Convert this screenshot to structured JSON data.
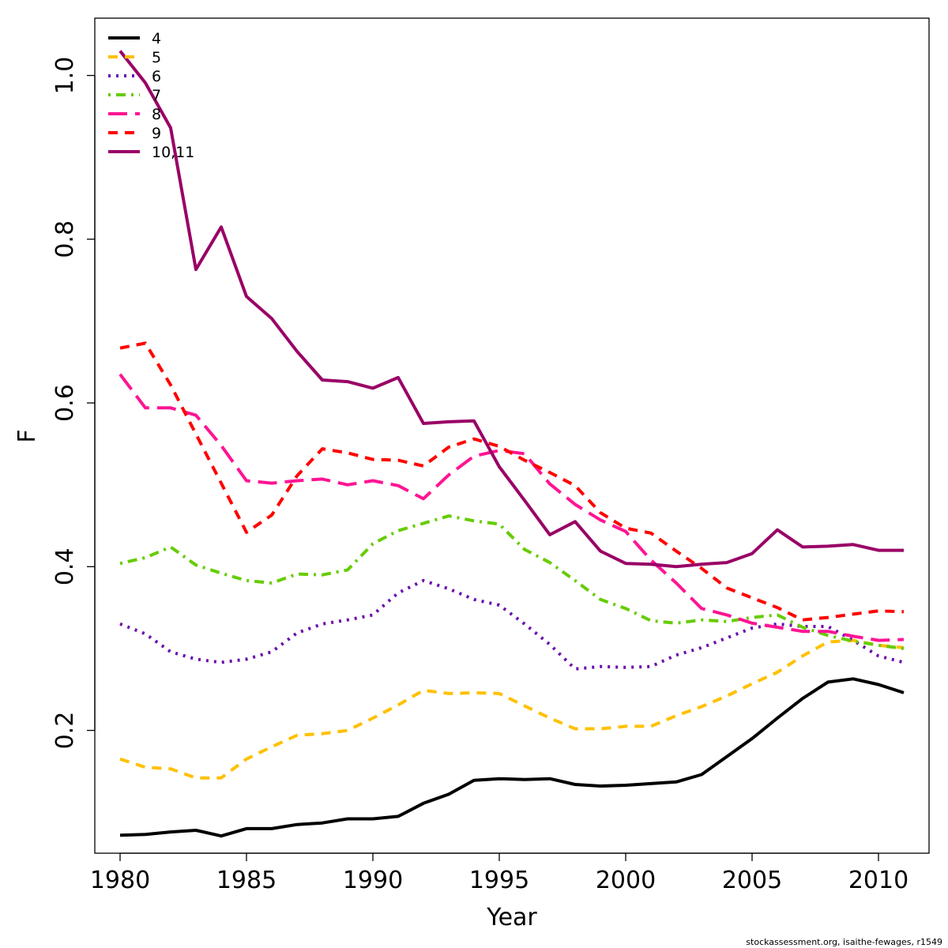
{
  "chart_data": {
    "type": "line",
    "title": "",
    "xlabel": "Year",
    "ylabel": "F",
    "xlim": [
      1979,
      2012
    ],
    "ylim": [
      0.05,
      1.07
    ],
    "x_ticks": [
      "1980",
      "1985",
      "1990",
      "1995",
      "2000",
      "2005",
      "2010"
    ],
    "y_ticks": [
      "0.2",
      "0.4",
      "0.6",
      "0.8",
      "1.0"
    ],
    "legend_position": "top-left",
    "grid": false,
    "footer": "stockassessment.org, isaithe-fewages, r1549",
    "x": [
      1980,
      1981,
      1982,
      1983,
      1984,
      1985,
      1986,
      1987,
      1988,
      1989,
      1990,
      1991,
      1992,
      1993,
      1994,
      1995,
      1996,
      1997,
      1998,
      1999,
      2000,
      2001,
      2002,
      2003,
      2004,
      2005,
      2006,
      2007,
      2008,
      2009,
      2010,
      2011
    ],
    "series": [
      {
        "name": "4",
        "color": "#000000",
        "dash": "solid",
        "values": [
          0.072,
          0.073,
          0.076,
          0.078,
          0.071,
          0.08,
          0.08,
          0.085,
          0.087,
          0.092,
          0.092,
          0.095,
          0.111,
          0.122,
          0.139,
          0.141,
          0.14,
          0.141,
          0.134,
          0.132,
          0.133,
          0.135,
          0.137,
          0.146,
          0.168,
          0.19,
          0.215,
          0.239,
          0.259,
          0.263,
          0.256,
          0.246
        ]
      },
      {
        "name": "5",
        "color": "#FFC000",
        "dash": "dashed",
        "values": [
          0.165,
          0.155,
          0.153,
          0.142,
          0.142,
          0.165,
          0.18,
          0.194,
          0.196,
          0.2,
          0.215,
          0.231,
          0.249,
          0.245,
          0.246,
          0.245,
          0.23,
          0.215,
          0.202,
          0.202,
          0.205,
          0.205,
          0.218,
          0.229,
          0.242,
          0.257,
          0.271,
          0.291,
          0.308,
          0.31,
          0.304,
          0.301
        ]
      },
      {
        "name": "6",
        "color": "#6A0DAD",
        "dash": "dotted",
        "values": [
          0.33,
          0.318,
          0.296,
          0.287,
          0.283,
          0.287,
          0.296,
          0.319,
          0.33,
          0.335,
          0.341,
          0.368,
          0.383,
          0.373,
          0.36,
          0.353,
          0.33,
          0.305,
          0.275,
          0.278,
          0.277,
          0.278,
          0.292,
          0.301,
          0.313,
          0.325,
          0.33,
          0.327,
          0.327,
          0.31,
          0.291,
          0.283
        ]
      },
      {
        "name": "7",
        "color": "#66CC00",
        "dash": "dotdash",
        "values": [
          0.404,
          0.411,
          0.424,
          0.402,
          0.392,
          0.383,
          0.38,
          0.391,
          0.39,
          0.396,
          0.428,
          0.444,
          0.453,
          0.462,
          0.456,
          0.452,
          0.421,
          0.405,
          0.383,
          0.36,
          0.349,
          0.334,
          0.331,
          0.335,
          0.333,
          0.338,
          0.341,
          0.326,
          0.316,
          0.309,
          0.304,
          0.3
        ]
      },
      {
        "name": "8",
        "color": "#FF1493",
        "dash": "longdash",
        "values": [
          0.635,
          0.594,
          0.594,
          0.585,
          0.548,
          0.505,
          0.502,
          0.505,
          0.507,
          0.5,
          0.505,
          0.499,
          0.483,
          0.512,
          0.535,
          0.542,
          0.538,
          0.501,
          0.476,
          0.457,
          0.443,
          0.408,
          0.38,
          0.349,
          0.341,
          0.331,
          0.326,
          0.321,
          0.321,
          0.315,
          0.31,
          0.311
        ]
      },
      {
        "name": "9",
        "color": "#FF0000",
        "dash": "dashed",
        "values": [
          0.667,
          0.673,
          0.622,
          0.562,
          0.502,
          0.442,
          0.463,
          0.511,
          0.544,
          0.539,
          0.531,
          0.53,
          0.523,
          0.546,
          0.556,
          0.547,
          0.53,
          0.515,
          0.499,
          0.466,
          0.447,
          0.441,
          0.419,
          0.398,
          0.374,
          0.362,
          0.35,
          0.335,
          0.338,
          0.342,
          0.346,
          0.345
        ]
      },
      {
        "name": "10,11",
        "color": "#990066",
        "dash": "solid",
        "values": [
          1.03,
          0.991,
          0.936,
          0.763,
          0.815,
          0.73,
          0.703,
          0.663,
          0.628,
          0.626,
          0.618,
          0.631,
          0.575,
          0.577,
          0.578,
          0.522,
          0.481,
          0.439,
          0.455,
          0.419,
          0.404,
          0.403,
          0.4,
          0.403,
          0.405,
          0.416,
          0.445,
          0.424,
          0.425,
          0.427,
          0.42,
          0.42
        ]
      }
    ]
  }
}
